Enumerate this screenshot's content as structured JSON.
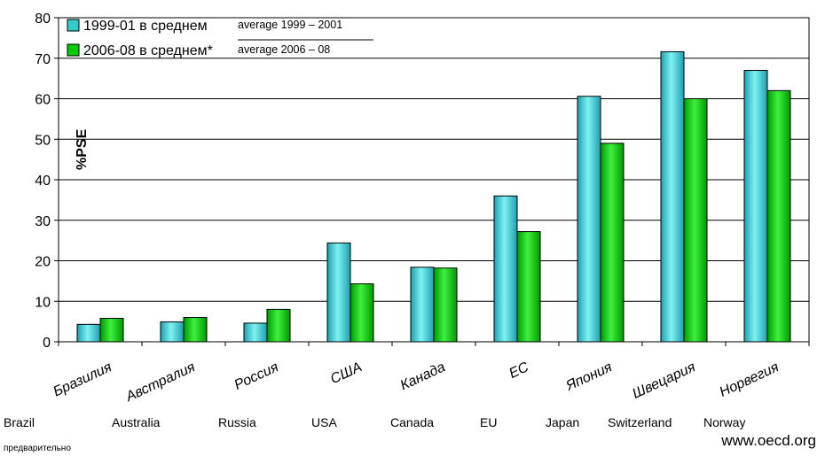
{
  "chart_data": {
    "type": "bar",
    "ylabel": "%PSE",
    "ylim": [
      0,
      80
    ],
    "yticks": [
      0,
      10,
      20,
      30,
      40,
      50,
      60,
      70,
      80
    ],
    "grid": true,
    "legend_position": "top-left",
    "categories": [
      "Бразилия",
      "Австралия",
      "Россия",
      "США",
      "Канада",
      "ЕС",
      "Япония",
      "Швецария",
      "Норвегия"
    ],
    "categories_en": [
      "Brazil",
      "Australia",
      "Russia",
      "USA",
      "Canada",
      "EU",
      "Japan",
      "Switzerland",
      "Norway"
    ],
    "series": [
      {
        "name": "1999-01 в среднем",
        "name_en": "average 1999 – 2001",
        "color": "#33CCCC",
        "values": [
          4.3,
          4.9,
          4.6,
          24.4,
          18.4,
          36.0,
          60.6,
          71.6,
          67.0
        ]
      },
      {
        "name": "2006-08 в среднем*",
        "name_en": "average 2006 – 08",
        "color": "#00CC00",
        "values": [
          5.8,
          6.0,
          8.0,
          14.3,
          18.2,
          27.2,
          49.0,
          60.0,
          62.0
        ]
      }
    ]
  },
  "footnote": "предварительно",
  "source": "www.oecd.org"
}
